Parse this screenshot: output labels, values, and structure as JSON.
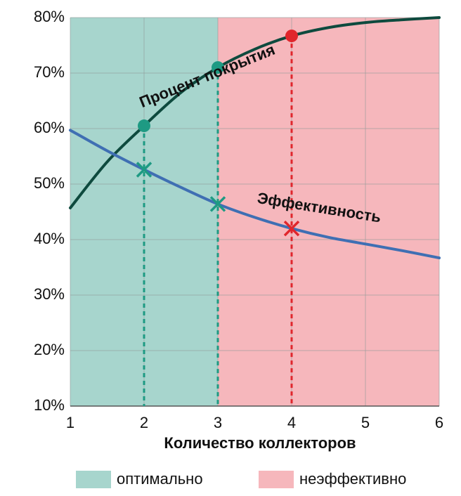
{
  "chart_data": {
    "type": "line",
    "xlabel": "Количество коллекторов",
    "x": [
      1,
      1.5,
      2,
      2.5,
      3,
      3.5,
      4,
      4.5,
      5,
      5.5,
      6
    ],
    "series": [
      {
        "name": "Процент покрытия",
        "color": "#0e4a3e",
        "values": [
          45.7,
          54,
          60.5,
          66.5,
          71,
          74.3,
          76.7,
          78.2,
          79.1,
          79.6,
          80
        ]
      },
      {
        "name": "Эффективность",
        "color": "#3f6fb3",
        "values": [
          59.7,
          56,
          52.6,
          49.4,
          46.4,
          44,
          42,
          40.4,
          39.2,
          38,
          36.7
        ]
      }
    ],
    "markers": [
      {
        "x": 2,
        "color": "#1e9a83"
      },
      {
        "x": 3,
        "color": "#1e9a83"
      },
      {
        "x": 4,
        "color": "#e0262c"
      }
    ],
    "regions": [
      {
        "name": "оптимально",
        "color": "#a7d5cd",
        "from": 1,
        "to": 3
      },
      {
        "name": "неэффективно",
        "color": "#f6b7bc",
        "from": 3,
        "to": 6
      }
    ],
    "xlim": [
      1,
      6
    ],
    "xticks": [
      1,
      2,
      3,
      4,
      5,
      6
    ],
    "ylim": [
      10,
      80
    ],
    "yticks": [
      {
        "value": 10,
        "label": "10%"
      },
      {
        "value": 20,
        "label": "20%"
      },
      {
        "value": 30,
        "label": "30%"
      },
      {
        "value": 40,
        "label": "40%"
      },
      {
        "value": 50,
        "label": "50%"
      },
      {
        "value": 60,
        "label": "60%"
      },
      {
        "value": 70,
        "label": "70%"
      },
      {
        "value": 80,
        "label": "80%"
      }
    ],
    "grid": true
  }
}
